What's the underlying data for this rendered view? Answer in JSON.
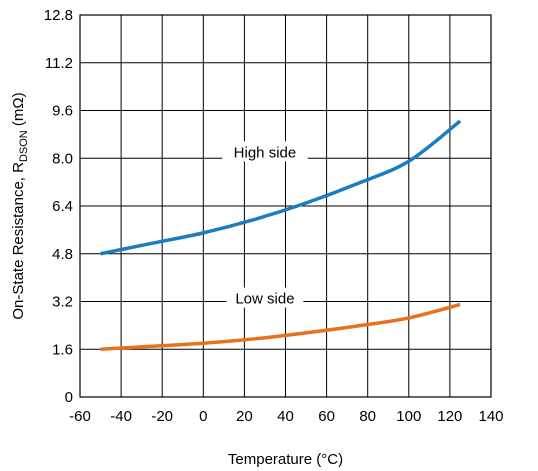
{
  "chart_data": {
    "type": "line",
    "xlabel": "Temperature (°C)",
    "ylabel": {
      "prefix": "On-State Resistance, R",
      "subscript": "DSON",
      "suffix": " (mΩ)"
    },
    "xlim": [
      -60,
      140
    ],
    "ylim": [
      0,
      12.8
    ],
    "xticks": [
      -60,
      -40,
      -20,
      0,
      20,
      40,
      60,
      80,
      100,
      120,
      140
    ],
    "yticks": [
      0,
      1.6,
      3.2,
      4.8,
      6.4,
      8.0,
      9.6,
      11.2,
      12.8
    ],
    "ytick_labels": [
      "0",
      "1.6",
      "3.2",
      "4.8",
      "6.4",
      "8.0",
      "9.6",
      "11.2",
      "12.8"
    ],
    "grid": true,
    "series": [
      {
        "name": "High side",
        "color": "#1a7cc1",
        "x": [
          -50,
          -25,
          0,
          25,
          50,
          75,
          100,
          125
        ],
        "y": [
          4.8,
          5.15,
          5.5,
          5.95,
          6.5,
          7.15,
          7.9,
          9.25
        ]
      },
      {
        "name": "Low side",
        "color": "#e8711e",
        "x": [
          -50,
          -25,
          0,
          25,
          50,
          75,
          100,
          125
        ],
        "y": [
          1.6,
          1.7,
          1.8,
          1.95,
          2.15,
          2.38,
          2.65,
          3.1
        ]
      }
    ],
    "annotations": [
      {
        "text": "High side",
        "x": 30,
        "y": 8.2
      },
      {
        "text": "Low side",
        "x": 30,
        "y": 3.3
      }
    ]
  }
}
